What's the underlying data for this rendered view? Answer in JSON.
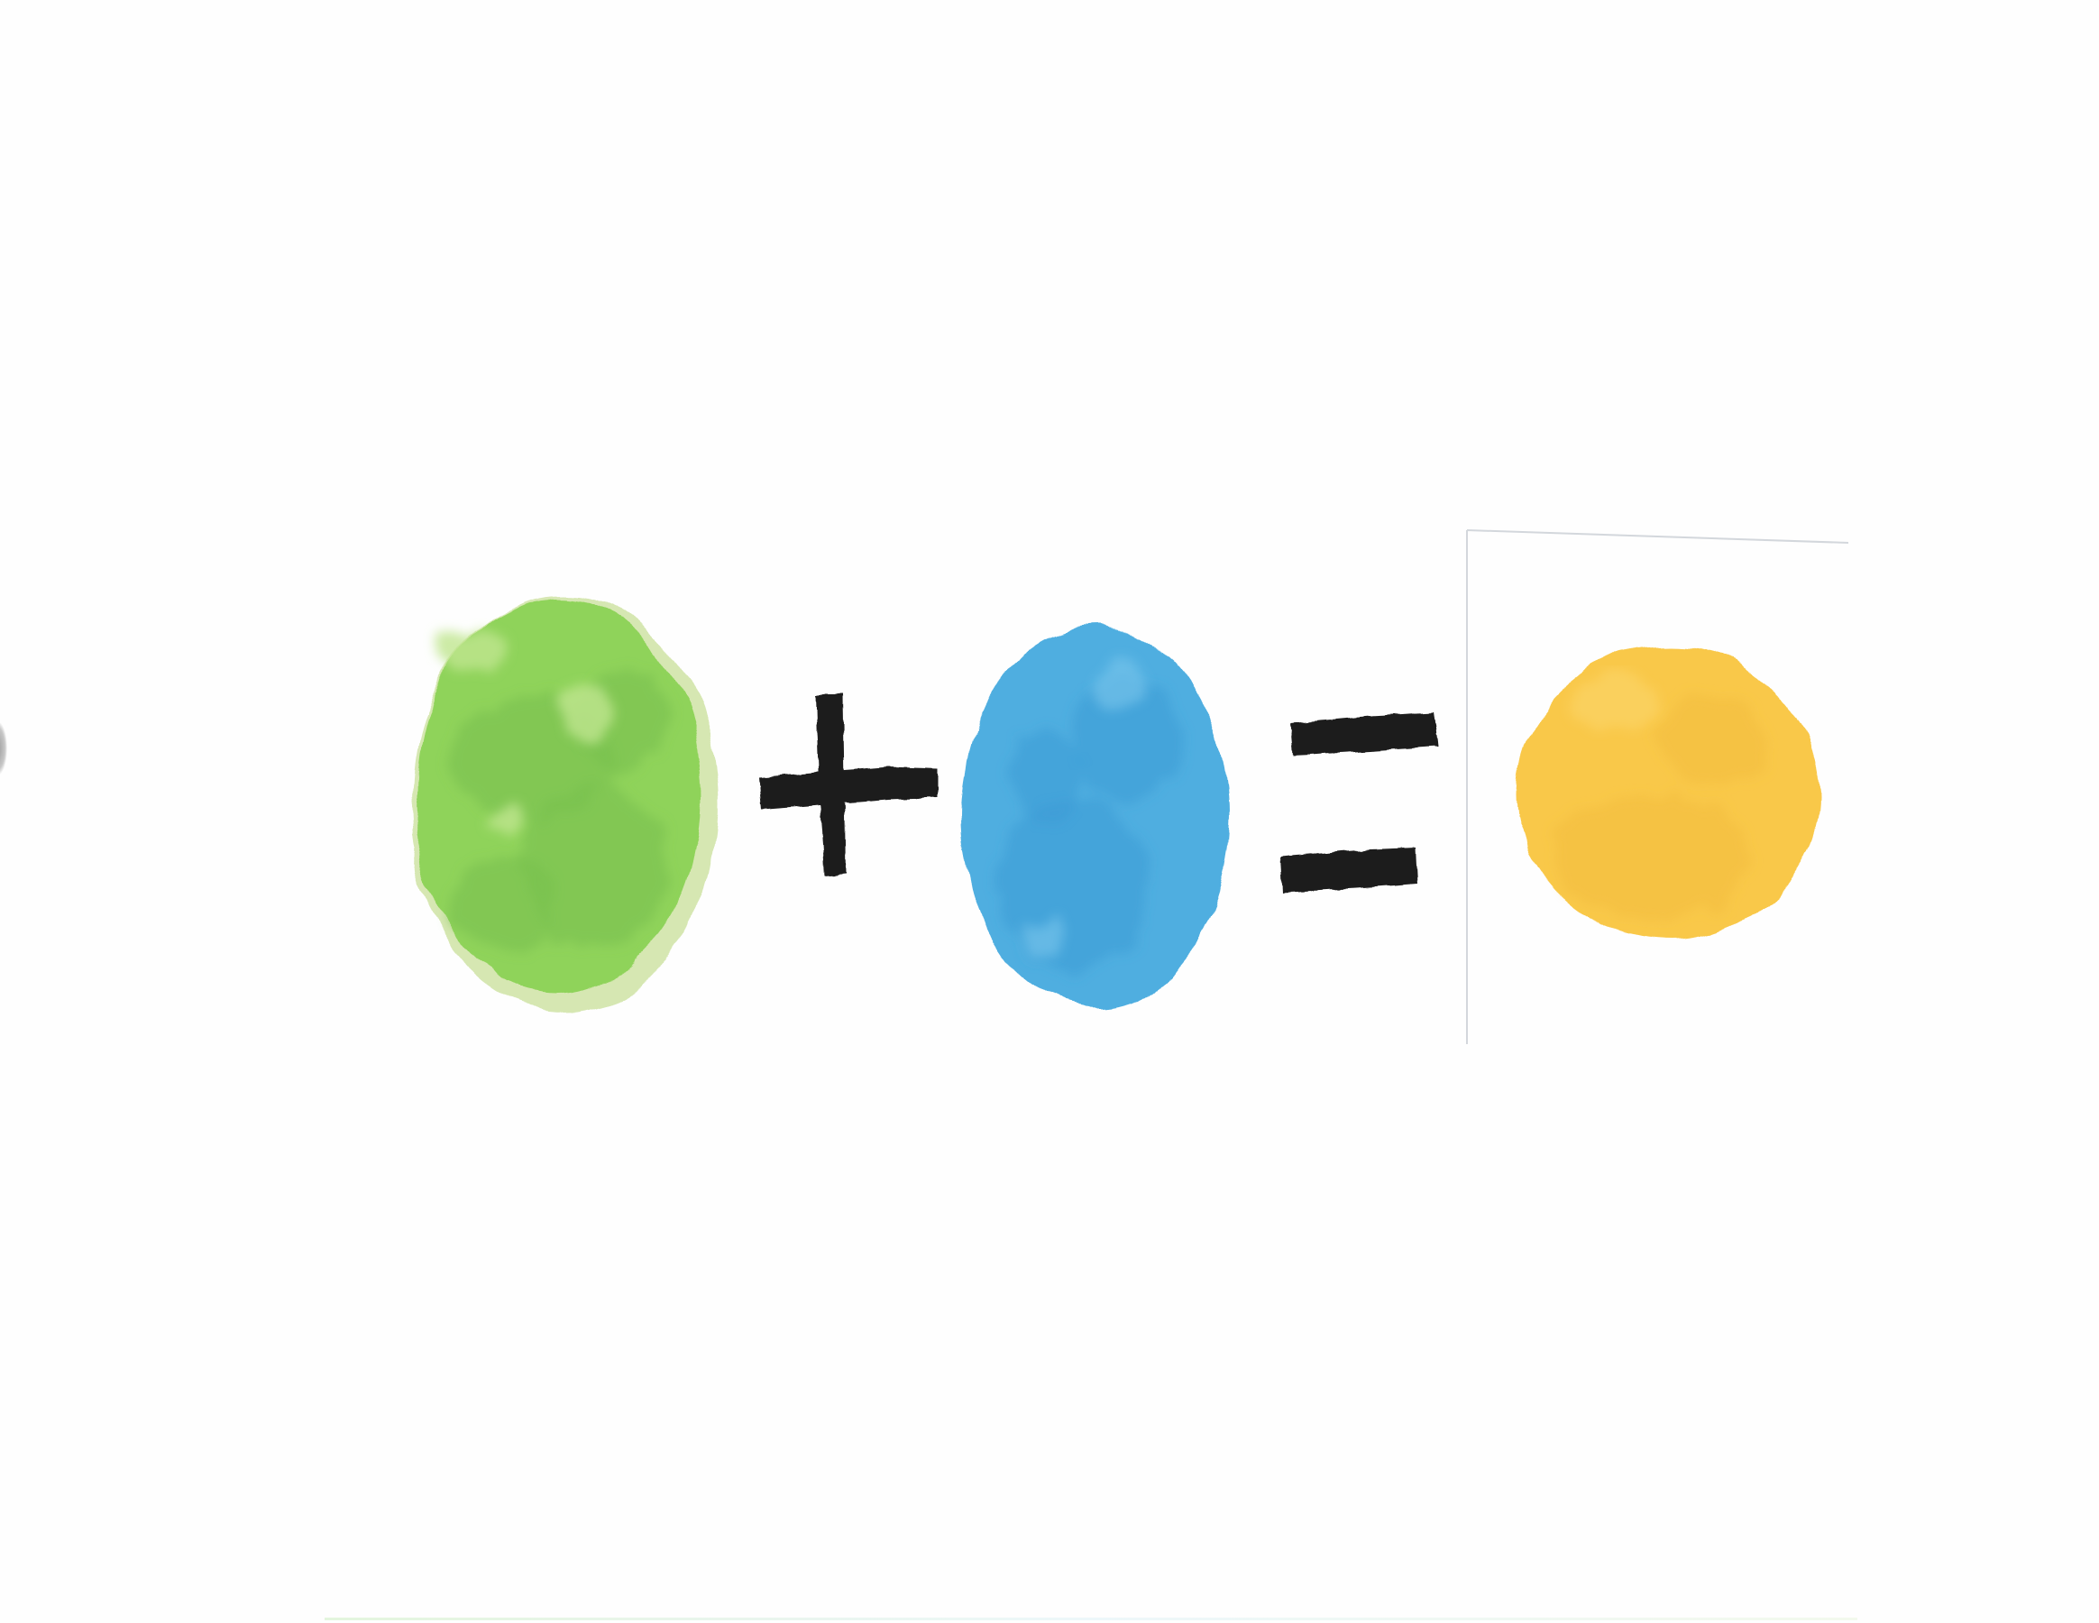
{
  "scene": {
    "description_kind": "hand-painted color equation",
    "operands": [
      {
        "name": "green",
        "color": "#8fd35a",
        "shadow": "#78bf4f",
        "highlight": "#bfe68e",
        "rim": "#cfe3a5"
      },
      {
        "name": "blue",
        "color": "#4faee0",
        "shadow": "#3a9ad6",
        "highlight": "#7cc6ec"
      }
    ],
    "result": {
      "name": "yellow",
      "color": "#f9c84a",
      "shadow": "#f2bb3c",
      "highlight": "#fbd56a"
    },
    "operators": {
      "plus": "+",
      "equals": "="
    },
    "ink_color": "#1f1f1f",
    "card_border_color": "#d3d7dc"
  }
}
